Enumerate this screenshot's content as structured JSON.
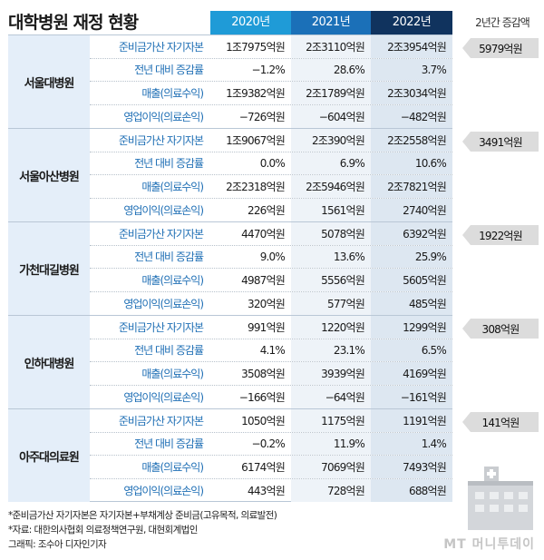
{
  "title": "대학병원 재정 현황",
  "increase_header": "2년간 증감액",
  "chart_data": {
    "type": "table",
    "title": "대학병원 재정 현황",
    "columns": [
      "2020년",
      "2021년",
      "2022년"
    ],
    "hospitals": [
      {
        "name": "서울대병원",
        "increase": "5979억원",
        "rows": [
          {
            "metric": "준비금가산 자기자본",
            "values": [
              "1조7975억원",
              "2조3110억원",
              "2조3954억원"
            ]
          },
          {
            "metric": "전년 대비 증감률",
            "values": [
              "−1.2%",
              "28.6%",
              "3.7%"
            ]
          },
          {
            "metric": "매출(의료수익)",
            "values": [
              "1조9382억원",
              "2조1789억원",
              "2조3034억원"
            ]
          },
          {
            "metric": "영업이익(의료손익)",
            "values": [
              "−726억원",
              "−604억원",
              "−482억원"
            ]
          }
        ]
      },
      {
        "name": "서울아산병원",
        "increase": "3491억원",
        "rows": [
          {
            "metric": "준비금가산 자기자본",
            "values": [
              "1조9067억원",
              "2조390억원",
              "2조2558억원"
            ]
          },
          {
            "metric": "전년 대비 증감률",
            "values": [
              "0.0%",
              "6.9%",
              "10.6%"
            ]
          },
          {
            "metric": "매출(의료수익)",
            "values": [
              "2조2318억원",
              "2조5946억원",
              "2조7821억원"
            ]
          },
          {
            "metric": "영업이익(의료손익)",
            "values": [
              "226억원",
              "1561억원",
              "2740억원"
            ]
          }
        ]
      },
      {
        "name": "가천대길병원",
        "increase": "1922억원",
        "rows": [
          {
            "metric": "준비금가산 자기자본",
            "values": [
              "4470억원",
              "5078억원",
              "6392억원"
            ]
          },
          {
            "metric": "전년 대비 증감률",
            "values": [
              "9.0%",
              "13.6%",
              "25.9%"
            ]
          },
          {
            "metric": "매출(의료수익)",
            "values": [
              "4987억원",
              "5556억원",
              "5605억원"
            ]
          },
          {
            "metric": "영업이익(의료손익)",
            "values": [
              "320억원",
              "577억원",
              "485억원"
            ]
          }
        ]
      },
      {
        "name": "인하대병원",
        "increase": "308억원",
        "rows": [
          {
            "metric": "준비금가산 자기자본",
            "values": [
              "991억원",
              "1220억원",
              "1299억원"
            ]
          },
          {
            "metric": "전년 대비 증감률",
            "values": [
              "4.1%",
              "23.1%",
              "6.5%"
            ]
          },
          {
            "metric": "매출(의료수익)",
            "values": [
              "3508억원",
              "3939억원",
              "4169억원"
            ]
          },
          {
            "metric": "영업이익(의료손익)",
            "values": [
              "−166억원",
              "−64억원",
              "−161억원"
            ]
          }
        ]
      },
      {
        "name": "아주대의료원",
        "increase": "141억원",
        "rows": [
          {
            "metric": "준비금가산 자기자본",
            "values": [
              "1050억원",
              "1175억원",
              "1191억원"
            ]
          },
          {
            "metric": "전년 대비 증감률",
            "values": [
              "−0.2%",
              "11.9%",
              "1.4%"
            ]
          },
          {
            "metric": "매출(의료수익)",
            "values": [
              "6174억원",
              "7069억원",
              "7493억원"
            ]
          },
          {
            "metric": "영업이익(의료손익)",
            "values": [
              "443억원",
              "728억원",
              "688억원"
            ]
          }
        ]
      }
    ]
  },
  "notes": [
    "*준비금가산 자기자본은 자기자본+부채계상 준비금(고유목적, 의료발전)",
    "*자료: 대한의사협회 의료정책연구원, 대현회계법인",
    "그래픽: 조수아 디자인기자"
  ],
  "watermark": "MT 머니투데이",
  "colors": {
    "col_2020": "#1f9bd7",
    "col_2021": "#1b70b8",
    "col_2022": "#10335e",
    "hospital_bg": "#e4eef9",
    "metric_text": "#1f6fb5",
    "badge_bg": "#dcdcdc"
  }
}
